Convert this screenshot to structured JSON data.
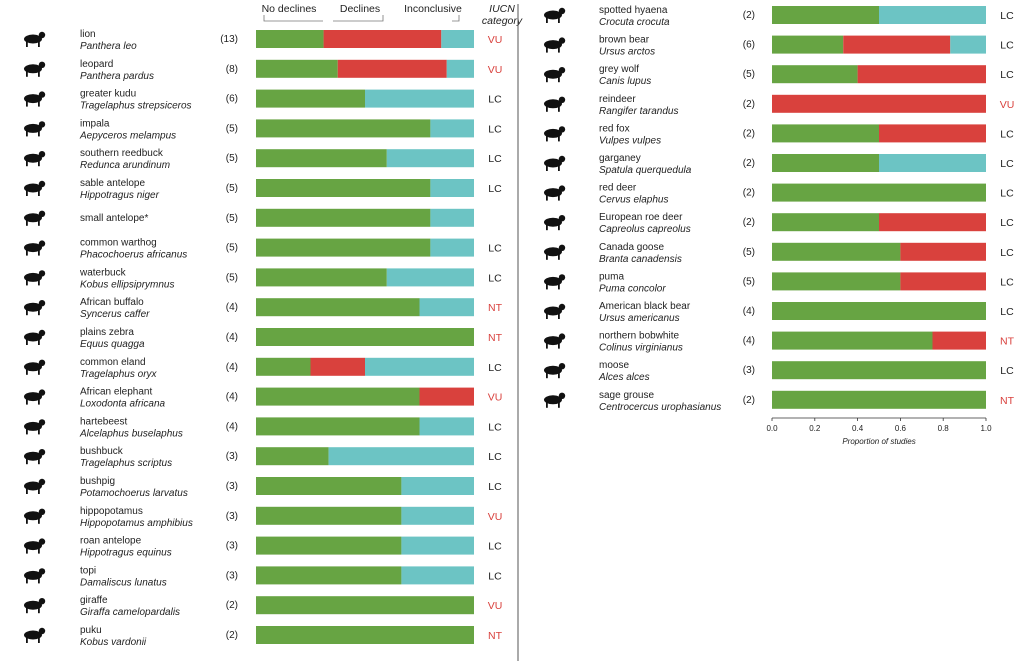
{
  "chart_data": {
    "type": "bar",
    "stacked": true,
    "orientation": "horizontal",
    "legend": [
      "No declines",
      "Declines",
      "Inconclusive"
    ],
    "iucn_header": "IUCN category",
    "xlabel": "Proportion of studies",
    "xlim": [
      0,
      1
    ],
    "xticks": [
      "0.0",
      "0.2",
      "0.4",
      "0.6",
      "0.8",
      "1.0"
    ],
    "colors": {
      "no_declines": "#67a443",
      "declines": "#d9413d",
      "inconclusive": "#6cc4c4",
      "lc": "#222222",
      "threatened": "#d9413d"
    },
    "left_panel": [
      {
        "common": "lion",
        "scientific": "Panthera leo",
        "n": "(13)",
        "values": [
          0.31,
          0.54,
          0.15
        ],
        "iucn": "VU",
        "icon": "lion-icon"
      },
      {
        "common": "leopard",
        "scientific": "Panthera pardus",
        "n": "(8)",
        "values": [
          0.375,
          0.5,
          0.125
        ],
        "iucn": "VU",
        "icon": "leopard-icon"
      },
      {
        "common": "greater kudu",
        "scientific": "Tragelaphus strepsiceros",
        "n": "(6)",
        "values": [
          0.5,
          0.0,
          0.5
        ],
        "iucn": "LC",
        "icon": "kudu-icon"
      },
      {
        "common": "impala",
        "scientific": "Aepyceros melampus",
        "n": "(5)",
        "values": [
          0.8,
          0.0,
          0.2
        ],
        "iucn": "LC",
        "icon": "impala-icon"
      },
      {
        "common": "southern reedbuck",
        "scientific": "Redunca arundinum",
        "n": "(5)",
        "values": [
          0.6,
          0.0,
          0.4
        ],
        "iucn": "LC",
        "icon": "reedbuck-icon"
      },
      {
        "common": "sable antelope",
        "scientific": "Hippotragus niger",
        "n": "(5)",
        "values": [
          0.8,
          0.0,
          0.2
        ],
        "iucn": "LC",
        "icon": "sable-antelope-icon"
      },
      {
        "common": "small antelope*",
        "scientific": "",
        "n": "(5)",
        "values": [
          0.8,
          0.0,
          0.2
        ],
        "iucn": "",
        "icon": "small-antelope-icon"
      },
      {
        "common": "common warthog",
        "scientific": "Phacochoerus africanus",
        "n": "(5)",
        "values": [
          0.8,
          0.0,
          0.2
        ],
        "iucn": "LC",
        "icon": "warthog-icon"
      },
      {
        "common": "waterbuck",
        "scientific": "Kobus ellipsiprymnus",
        "n": "(5)",
        "values": [
          0.6,
          0.0,
          0.4
        ],
        "iucn": "LC",
        "icon": "waterbuck-icon"
      },
      {
        "common": "African buffalo",
        "scientific": "Syncerus caffer",
        "n": "(4)",
        "values": [
          0.75,
          0.0,
          0.25
        ],
        "iucn": "NT",
        "icon": "buffalo-icon"
      },
      {
        "common": "plains zebra",
        "scientific": "Equus quagga",
        "n": "(4)",
        "values": [
          1.0,
          0.0,
          0.0
        ],
        "iucn": "NT",
        "icon": "zebra-icon"
      },
      {
        "common": "common eland",
        "scientific": "Tragelaphus oryx",
        "n": "(4)",
        "values": [
          0.25,
          0.25,
          0.5
        ],
        "iucn": "LC",
        "icon": "eland-icon"
      },
      {
        "common": "African elephant",
        "scientific": "Loxodonta africana",
        "n": "(4)",
        "values": [
          0.75,
          0.25,
          0.0
        ],
        "iucn": "VU",
        "icon": "elephant-icon"
      },
      {
        "common": "hartebeest",
        "scientific": "Alcelaphus buselaphus",
        "n": "(4)",
        "values": [
          0.75,
          0.0,
          0.25
        ],
        "iucn": "LC",
        "icon": "hartebeest-icon"
      },
      {
        "common": "bushbuck",
        "scientific": "Tragelaphus scriptus",
        "n": "(3)",
        "values": [
          0.333,
          0.0,
          0.667
        ],
        "iucn": "LC",
        "icon": "bushbuck-icon"
      },
      {
        "common": "bushpig",
        "scientific": "Potamochoerus larvatus",
        "n": "(3)",
        "values": [
          0.667,
          0.0,
          0.333
        ],
        "iucn": "LC",
        "icon": "bushpig-icon"
      },
      {
        "common": "hippopotamus",
        "scientific": "Hippopotamus amphibius",
        "n": "(3)",
        "values": [
          0.667,
          0.0,
          0.333
        ],
        "iucn": "VU",
        "icon": "hippopotamus-icon"
      },
      {
        "common": "roan antelope",
        "scientific": "Hippotragus equinus",
        "n": "(3)",
        "values": [
          0.667,
          0.0,
          0.333
        ],
        "iucn": "LC",
        "icon": "roan-antelope-icon"
      },
      {
        "common": "topi",
        "scientific": "Damaliscus lunatus",
        "n": "(3)",
        "values": [
          0.667,
          0.0,
          0.333
        ],
        "iucn": "LC",
        "icon": "topi-icon"
      },
      {
        "common": "giraffe",
        "scientific": "Giraffa camelopardalis",
        "n": "(2)",
        "values": [
          1.0,
          0.0,
          0.0
        ],
        "iucn": "VU",
        "icon": "giraffe-icon"
      },
      {
        "common": "puku",
        "scientific": "Kobus vardonii",
        "n": "(2)",
        "values": [
          1.0,
          0.0,
          0.0
        ],
        "iucn": "NT",
        "icon": "puku-icon"
      }
    ],
    "right_panel": [
      {
        "common": "spotted hyaena",
        "scientific": "Crocuta crocuta",
        "n": "(2)",
        "values": [
          0.5,
          0.0,
          0.5
        ],
        "iucn": "LC",
        "icon": "hyaena-icon"
      },
      {
        "common": "brown bear",
        "scientific": "Ursus arctos",
        "n": "(6)",
        "values": [
          0.333,
          0.5,
          0.167
        ],
        "iucn": "LC",
        "icon": "brown-bear-icon"
      },
      {
        "common": "grey wolf",
        "scientific": "Canis lupus",
        "n": "(5)",
        "values": [
          0.4,
          0.6,
          0.0
        ],
        "iucn": "LC",
        "icon": "wolf-icon"
      },
      {
        "common": "reindeer",
        "scientific": "Rangifer tarandus",
        "n": "(2)",
        "values": [
          0.0,
          1.0,
          0.0
        ],
        "iucn": "VU",
        "icon": "reindeer-icon"
      },
      {
        "common": "red fox",
        "scientific": "Vulpes vulpes",
        "n": "(2)",
        "values": [
          0.5,
          0.5,
          0.0
        ],
        "iucn": "LC",
        "icon": "red-fox-icon"
      },
      {
        "common": "garganey",
        "scientific": "Spatula querquedula",
        "n": "(2)",
        "values": [
          0.5,
          0.0,
          0.5
        ],
        "iucn": "LC",
        "icon": "garganey-icon"
      },
      {
        "common": "red deer",
        "scientific": "Cervus elaphus",
        "n": "(2)",
        "values": [
          1.0,
          0.0,
          0.0
        ],
        "iucn": "LC",
        "icon": "red-deer-icon"
      },
      {
        "common": "European roe deer",
        "scientific": "Capreolus capreolus",
        "n": "(2)",
        "values": [
          0.5,
          0.5,
          0.0
        ],
        "iucn": "LC",
        "icon": "roe-deer-icon"
      },
      {
        "common": "Canada goose",
        "scientific": "Branta canadensis",
        "n": "(5)",
        "values": [
          0.6,
          0.4,
          0.0
        ],
        "iucn": "LC",
        "icon": "canada-goose-icon"
      },
      {
        "common": "puma",
        "scientific": "Puma concolor",
        "n": "(5)",
        "values": [
          0.6,
          0.4,
          0.0
        ],
        "iucn": "LC",
        "icon": "puma-icon"
      },
      {
        "common": "American black bear",
        "scientific": "Ursus americanus",
        "n": "(4)",
        "values": [
          1.0,
          0.0,
          0.0
        ],
        "iucn": "LC",
        "icon": "black-bear-icon"
      },
      {
        "common": "northern bobwhite",
        "scientific": "Colinus virginianus",
        "n": "(4)",
        "values": [
          0.75,
          0.25,
          0.0
        ],
        "iucn": "NT",
        "icon": "bobwhite-icon"
      },
      {
        "common": "moose",
        "scientific": "Alces alces",
        "n": "(3)",
        "values": [
          1.0,
          0.0,
          0.0
        ],
        "iucn": "LC",
        "icon": "moose-icon"
      },
      {
        "common": "sage grouse",
        "scientific": "Centrocercus urophasianus",
        "n": "(2)",
        "values": [
          1.0,
          0.0,
          0.0
        ],
        "iucn": "NT",
        "icon": "sage-grouse-icon"
      }
    ]
  }
}
